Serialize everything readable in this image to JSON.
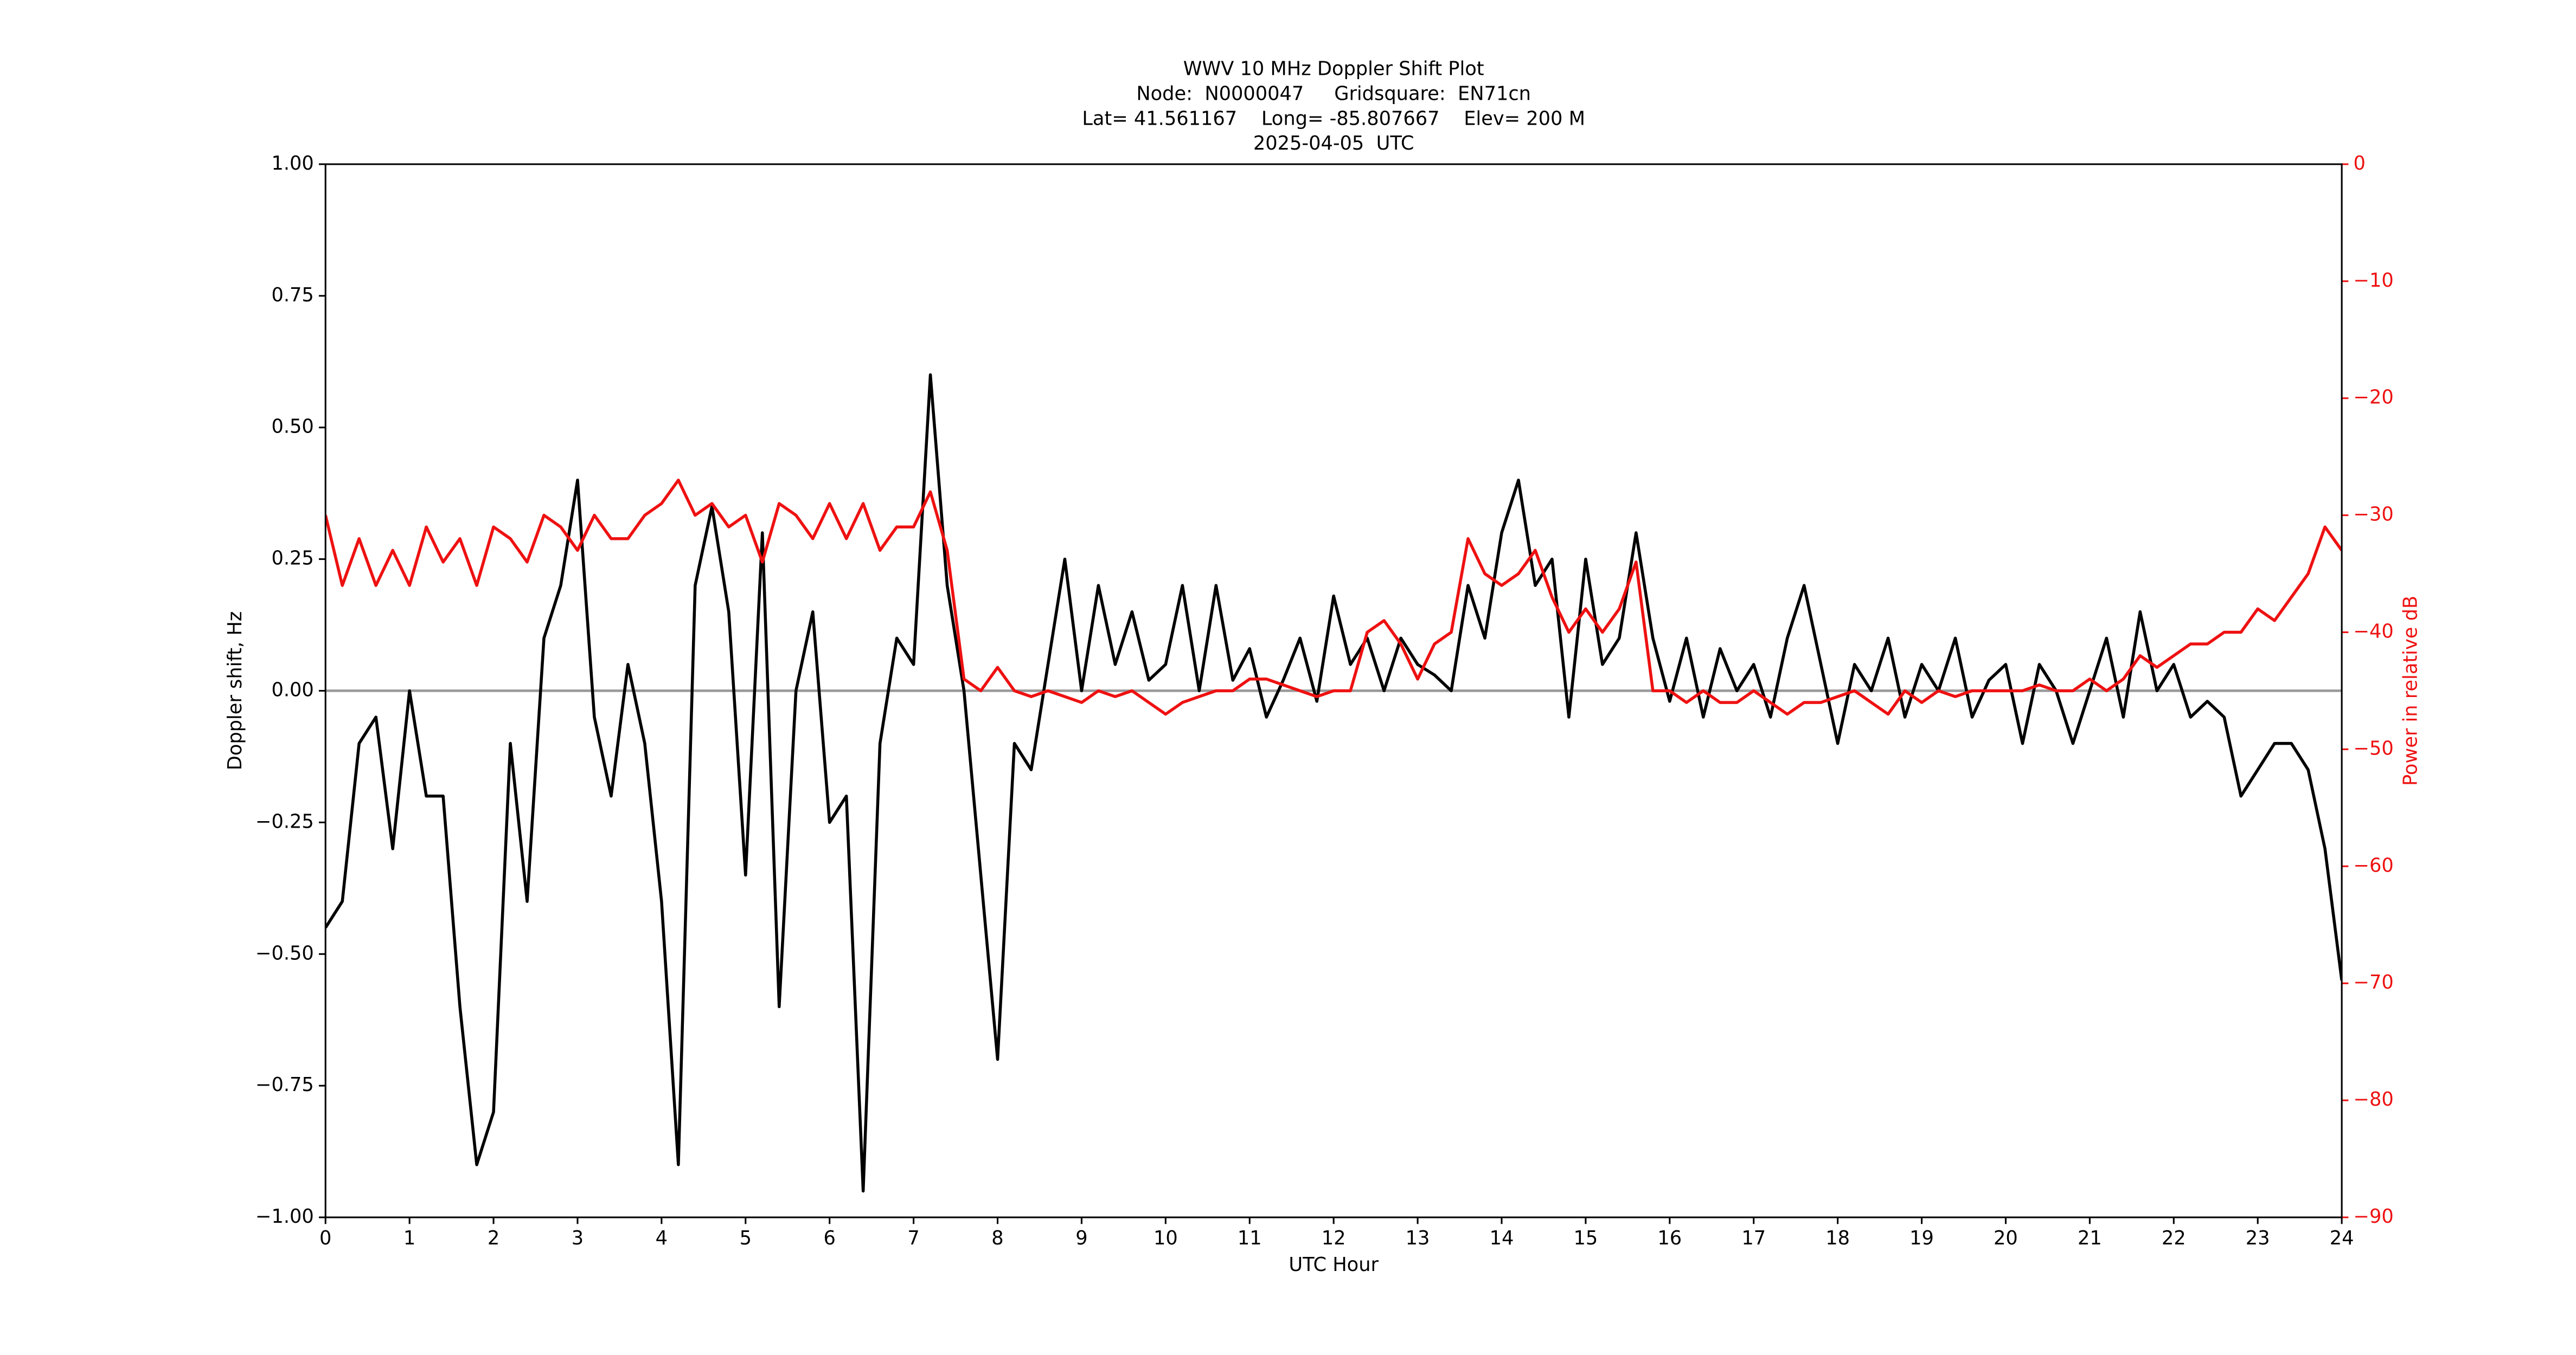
{
  "chart_data": {
    "type": "line",
    "title": [
      "WWV 10 MHz Doppler Shift Plot",
      "Node:  N0000047     Gridsquare:  EN71cn",
      "Lat= 41.561167    Long= -85.807667    Elev= 200 M",
      "2025-04-05  UTC"
    ],
    "xlabel": "UTC Hour",
    "ylabel": "Doppler shift, Hz",
    "y2label": "Power in relative dB",
    "xlim": [
      0,
      24
    ],
    "xticks": [
      0,
      1,
      2,
      3,
      4,
      5,
      6,
      7,
      8,
      9,
      10,
      11,
      12,
      13,
      14,
      15,
      16,
      17,
      18,
      19,
      20,
      21,
      22,
      23,
      24
    ],
    "ylim": [
      -1,
      1
    ],
    "yticks": [
      {
        "value": -1,
        "label": "−1.00"
      },
      {
        "value": -0.75,
        "label": "−0.75"
      },
      {
        "value": -0.5,
        "label": "−0.50"
      },
      {
        "value": -0.25,
        "label": "−0.25"
      },
      {
        "value": 0,
        "label": "0.00"
      },
      {
        "value": 0.25,
        "label": "0.25"
      },
      {
        "value": 0.5,
        "label": "0.50"
      },
      {
        "value": 0.75,
        "label": "0.75"
      },
      {
        "value": 1,
        "label": "1.00"
      }
    ],
    "y2lim": [
      -90,
      0
    ],
    "y2ticks": [
      {
        "value": -90,
        "label": "−90"
      },
      {
        "value": -80,
        "label": "−80"
      },
      {
        "value": -70,
        "label": "−70"
      },
      {
        "value": -60,
        "label": "−60"
      },
      {
        "value": -50,
        "label": "−50"
      },
      {
        "value": -40,
        "label": "−40"
      },
      {
        "value": -30,
        "label": "−30"
      },
      {
        "value": -20,
        "label": "−20"
      },
      {
        "value": -10,
        "label": "−10"
      },
      0
    ],
    "hline": 0,
    "hline_color": "#999999",
    "y2color": "#ee1111",
    "x": [
      0,
      0.2,
      0.4,
      0.6,
      0.8,
      1,
      1.2,
      1.4,
      1.6,
      1.8,
      2,
      2.2,
      2.4,
      2.6,
      2.8,
      3,
      3.2,
      3.4,
      3.6,
      3.8,
      4,
      4.2,
      4.4,
      4.6,
      4.8,
      5,
      5.2,
      5.4,
      5.6,
      5.8,
      6,
      6.2,
      6.4,
      6.6,
      6.8,
      7,
      7.2,
      7.4,
      7.6,
      7.8,
      8,
      8.2,
      8.4,
      8.6,
      8.8,
      9,
      9.2,
      9.4,
      9.6,
      9.8,
      10,
      10.2,
      10.4,
      10.6,
      10.8,
      11,
      11.2,
      11.4,
      11.6,
      11.8,
      12,
      12.2,
      12.4,
      12.6,
      12.8,
      13,
      13.2,
      13.4,
      13.6,
      13.8,
      14,
      14.2,
      14.4,
      14.6,
      14.8,
      15,
      15.2,
      15.4,
      15.6,
      15.8,
      16,
      16.2,
      16.4,
      16.6,
      16.8,
      17,
      17.2,
      17.4,
      17.6,
      17.8,
      18,
      18.2,
      18.4,
      18.6,
      18.8,
      19,
      19.2,
      19.4,
      19.6,
      19.8,
      20,
      20.2,
      20.4,
      20.6,
      20.8,
      21,
      21.2,
      21.4,
      21.6,
      21.8,
      22,
      22.2,
      22.4,
      22.6,
      22.8,
      23,
      23.2,
      23.4,
      23.6,
      23.8,
      24
    ],
    "series": [
      {
        "color": "#000000",
        "values": [
          -0.45,
          -0.4,
          -0.1,
          -0.05,
          -0.3,
          0,
          -0.2,
          -0.2,
          -0.6,
          -0.9,
          -0.8,
          -0.1,
          -0.4,
          0.1,
          0.2,
          0.4,
          -0.05,
          -0.2,
          0.05,
          -0.1,
          -0.4,
          -0.9,
          0.2,
          0.35,
          0.15,
          -0.35,
          0.3,
          -0.6,
          0,
          0.15,
          -0.25,
          -0.2,
          -0.95,
          -0.1,
          0.1,
          0.05,
          0.6,
          0.2,
          0,
          -0.35,
          -0.7,
          -0.1,
          -0.15,
          0.05,
          0.25,
          0,
          0.2,
          0.05,
          0.15,
          0.02,
          0.05,
          0.2,
          0,
          0.2,
          0.02,
          0.08,
          -0.05,
          0.02,
          0.1,
          -0.02,
          0.18,
          0.05,
          0.1,
          0,
          0.1,
          0.05,
          0.03,
          0,
          0.2,
          0.1,
          0.3,
          0.4,
          0.2,
          0.25,
          -0.05,
          0.25,
          0.05,
          0.1,
          0.3,
          0.1,
          -0.02,
          0.1,
          -0.05,
          0.08,
          0,
          0.05,
          -0.05,
          0.1,
          0.2,
          0.05,
          -0.1,
          0.05,
          0,
          0.1,
          -0.05,
          0.05,
          0,
          0.1,
          -0.05,
          0.02,
          0.05,
          -0.1,
          0.05,
          0,
          -0.1,
          0,
          0.1,
          -0.05,
          0.15,
          0,
          0.05,
          -0.05,
          -0.02,
          -0.05,
          -0.2,
          -0.15,
          -0.1,
          -0.1,
          -0.15,
          -0.3,
          -0.55
        ]
      },
      {
        "color": "#ee1111",
        "axis": "y2",
        "values": [
          -30,
          -36,
          -32,
          -36,
          -33,
          -36,
          -31,
          -34,
          -32,
          -36,
          -31,
          -32,
          -34,
          -30,
          -31,
          -33,
          -30,
          -32,
          -32,
          -30,
          -29,
          -27,
          -30,
          -29,
          -31,
          -30,
          -34,
          -29,
          -30,
          -32,
          -29,
          -32,
          -29,
          -33,
          -31,
          -31,
          -28,
          -33,
          -44,
          -45,
          -43,
          -45,
          -45.5,
          -45,
          -45.5,
          -46,
          -45,
          -45.5,
          -45,
          -46,
          -47,
          -46,
          -45.5,
          -45,
          -45,
          -44,
          -44,
          -44.5,
          -45,
          -45.5,
          -45,
          -45,
          -40,
          -39,
          -41,
          -44,
          -41,
          -40,
          -32,
          -35,
          -36,
          -35,
          -33,
          -37,
          -40,
          -38,
          -40,
          -38,
          -34,
          -45,
          -45,
          -46,
          -45,
          -46,
          -46,
          -45,
          -46,
          -47,
          -46,
          -46,
          -45.5,
          -45,
          -46,
          -47,
          -45,
          -46,
          -45,
          -45.5,
          -45,
          -45,
          -45,
          -45,
          -44.5,
          -45,
          -45,
          -44,
          -45,
          -44,
          -42,
          -43,
          -42,
          -41,
          -41,
          -40,
          -40,
          -38,
          -39,
          -37,
          -35,
          -31,
          -33
        ]
      }
    ]
  }
}
